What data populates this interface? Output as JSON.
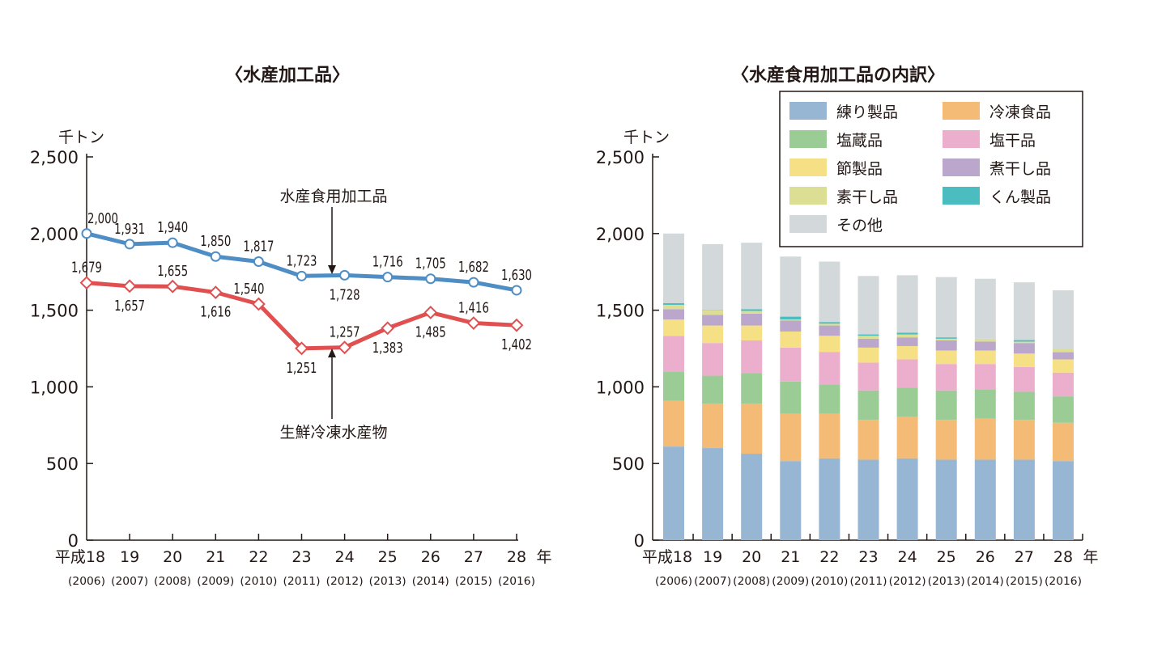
{
  "chart_data": [
    {
      "type": "line",
      "title": "〈水産加工品〉",
      "ylabel": "千トン",
      "xunit": "年",
      "ylim": [
        0,
        2500
      ],
      "yticks": [
        "0",
        "500",
        "1,000",
        "1,500",
        "2,000",
        "2,500"
      ],
      "categories": [
        "平成18",
        "19",
        "20",
        "21",
        "22",
        "23",
        "24",
        "25",
        "26",
        "27",
        "28"
      ],
      "categories_sub": [
        "(2006)",
        "(2007)",
        "(2008)",
        "(2009)",
        "(2010)",
        "(2011)",
        "(2012)",
        "(2013)",
        "(2014)",
        "(2015)",
        "(2016)"
      ],
      "grid": false,
      "series": [
        {
          "name": "水産食用加工品",
          "color": "#4f8ec4",
          "values": [
            2000,
            1931,
            1940,
            1850,
            1817,
            1723,
            1728,
            1716,
            1705,
            1682,
            1630
          ],
          "labels": [
            "2,000",
            "1,931",
            "1,940",
            "1,850",
            "1,817",
            "1,723",
            "1,728",
            "1,716",
            "1,705",
            "1,682",
            "1,630"
          ]
        },
        {
          "name": "生鮮冷凍水産物",
          "color": "#e05050",
          "values": [
            1679,
            1657,
            1655,
            1616,
            1540,
            1251,
            1257,
            1383,
            1485,
            1416,
            1402
          ],
          "labels": [
            "1,679",
            "1,657",
            "1,655",
            "1,616",
            "1,540",
            "1,251",
            "1,257",
            "1,383",
            "1,485",
            "1,416",
            "1,402"
          ]
        }
      ]
    },
    {
      "type": "bar",
      "stacked": true,
      "title": "〈水産食用加工品の内訳〉",
      "ylabel": "千トン",
      "xunit": "年",
      "ylim": [
        0,
        2500
      ],
      "yticks": [
        "0",
        "500",
        "1,000",
        "1,500",
        "2,000",
        "2,500"
      ],
      "categories": [
        "平成18",
        "19",
        "20",
        "21",
        "22",
        "23",
        "24",
        "25",
        "26",
        "27",
        "28"
      ],
      "categories_sub": [
        "(2006)",
        "(2007)",
        "(2008)",
        "(2009)",
        "(2010)",
        "(2011)",
        "(2012)",
        "(2013)",
        "(2014)",
        "(2015)",
        "(2016)"
      ],
      "legend": "top-right",
      "grid": false,
      "series": [
        {
          "name": "練り製品",
          "color": "#96b6d3",
          "values": [
            611,
            601,
            564,
            516,
            534,
            525,
            534,
            525,
            525,
            525,
            516
          ]
        },
        {
          "name": "冷凍食品",
          "color": "#f3bb76",
          "values": [
            297,
            290,
            327,
            308,
            290,
            260,
            269,
            260,
            269,
            260,
            250
          ]
        },
        {
          "name": "塩蔵品",
          "color": "#9ccc95",
          "values": [
            193,
            182,
            200,
            211,
            193,
            192,
            193,
            192,
            191,
            183,
            172
          ]
        },
        {
          "name": "塩干品",
          "color": "#ebafcd",
          "values": [
            232,
            213,
            212,
            221,
            211,
            181,
            183,
            172,
            164,
            161,
            155
          ]
        },
        {
          "name": "節製品",
          "color": "#f6e086",
          "values": [
            106,
            114,
            97,
            105,
            105,
            98,
            87,
            88,
            88,
            88,
            86
          ]
        },
        {
          "name": "煮干し品",
          "color": "#baa7cb",
          "values": [
            68,
            69,
            77,
            71,
            67,
            58,
            57,
            66,
            58,
            69,
            47
          ]
        },
        {
          "name": "素干し品",
          "color": "#dcdf93",
          "values": [
            28,
            29,
            18,
            8,
            12,
            19,
            19,
            11,
            19,
            9,
            21
          ]
        },
        {
          "name": "くん製品",
          "color": "#4bbcc0",
          "values": [
            11,
            2,
            12,
            18,
            11,
            9,
            11,
            9,
            0,
            10,
            0
          ]
        },
        {
          "name": "その他",
          "color": "#d3d8db",
          "values": [
            454,
            431,
            433,
            392,
            394,
            381,
            375,
            393,
            391,
            377,
            383
          ]
        }
      ]
    }
  ]
}
